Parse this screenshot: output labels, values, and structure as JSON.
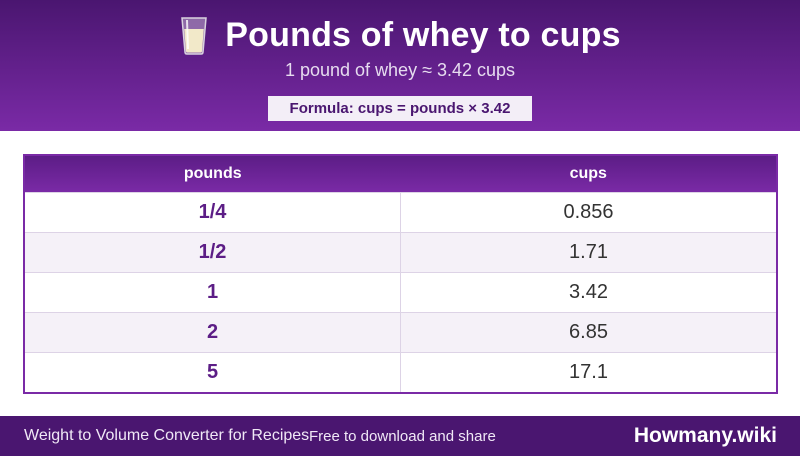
{
  "header": {
    "icon": "milk-glass-icon",
    "title": "Pounds of whey to cups",
    "subtitle": "1 pound of whey ≈ 3.42 cups",
    "formula": "Formula: cups = pounds × 3.42"
  },
  "table": {
    "columns": [
      "pounds",
      "cups"
    ],
    "rows": [
      {
        "pounds": "1/4",
        "cups": "0.856"
      },
      {
        "pounds": "1/2",
        "cups": "1.71"
      },
      {
        "pounds": "1",
        "cups": "3.42"
      },
      {
        "pounds": "2",
        "cups": "6.85"
      },
      {
        "pounds": "5",
        "cups": "17.1"
      }
    ]
  },
  "footer": {
    "left_text": "Weight to Volume Converter for Recipes",
    "mid_text": "Free to download and share",
    "brand": "Howmany.wiki"
  },
  "colors": {
    "header_dark": "#4a1670",
    "header_light": "#7a2aa6",
    "accent_text": "#5c1d86"
  }
}
